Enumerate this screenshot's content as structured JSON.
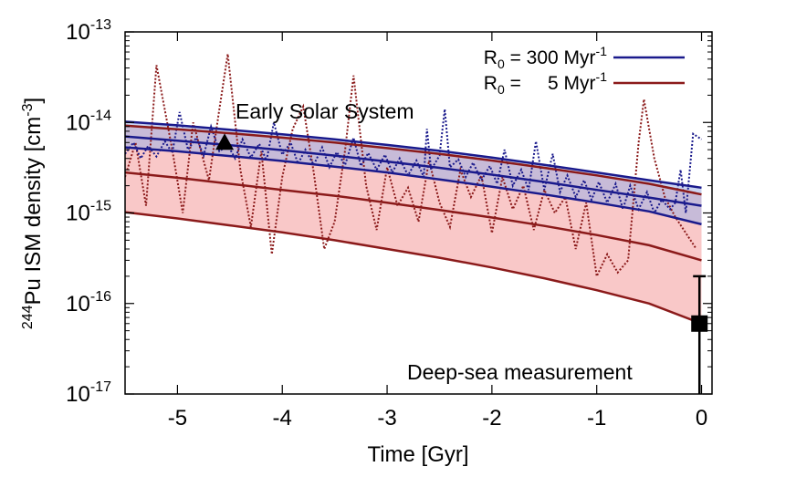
{
  "chart_data": {
    "type": "line",
    "xlabel": "Time [Gyr]",
    "ylabel": {
      "prefix_sup": "244",
      "main": "Pu ISM density [cm",
      "unit_sup": "-3",
      "suffix": "]"
    },
    "xlim": [
      -5.5,
      0.1
    ],
    "ylim": [
      1e-17,
      1e-13
    ],
    "y_scale": "log",
    "grid": false,
    "x_ticks": [
      {
        "value": -5,
        "label": "-5"
      },
      {
        "value": -4,
        "label": "-4"
      },
      {
        "value": -3,
        "label": "-3"
      },
      {
        "value": -2,
        "label": "-2"
      },
      {
        "value": -1,
        "label": "-1"
      },
      {
        "value": 0,
        "label": "0"
      }
    ],
    "y_ticks": [
      {
        "exp": -17,
        "base": "10",
        "sup": "-17"
      },
      {
        "exp": -16,
        "base": "10",
        "sup": "-16"
      },
      {
        "exp": -15,
        "base": "10",
        "sup": "-15"
      },
      {
        "exp": -14,
        "base": "10",
        "sup": "-14"
      },
      {
        "exp": -13,
        "base": "10",
        "sup": "-13"
      }
    ],
    "legend": {
      "placement": "top-right",
      "entries": [
        {
          "label_sym": "R",
          "label_sub": "0",
          "label_rest": " = 300 Myr",
          "label_sup": "-1",
          "color": "#1a1a8c"
        },
        {
          "label_sym": "R",
          "label_sub": "0",
          "label_rest": " =     5 Myr",
          "label_sup": "-1",
          "color": "#8b1a1a"
        }
      ]
    },
    "series": [
      {
        "color": "#1a1a8c",
        "band_color": "#9fb1e6",
        "x": [
          -5.5,
          -5.0,
          -4.5,
          -4.0,
          -3.5,
          -3.0,
          -2.5,
          -2.0,
          -1.5,
          -1.0,
          -0.5,
          0.0
        ],
        "upper": [
          1.02e-14,
          9.3e-15,
          8.3e-15,
          7.4e-15,
          6.5e-15,
          5.65e-15,
          4.85e-15,
          4.1e-15,
          3.4e-15,
          2.8e-15,
          2.3e-15,
          1.9e-15
        ],
        "mid": [
          7e-15,
          6.3e-15,
          5.6e-15,
          4.95e-15,
          4.3e-15,
          3.7e-15,
          3.15e-15,
          2.65e-15,
          2.2e-15,
          1.8e-15,
          1.48e-15,
          1.2e-15
        ],
        "lower": [
          5.3e-15,
          4.8e-15,
          4.25e-15,
          3.75e-15,
          3.25e-15,
          2.8e-15,
          2.35e-15,
          1.95e-15,
          1.6e-15,
          1.3e-15,
          1.04e-15,
          7.5e-16
        ],
        "stochastic": [
          [
            -5.5,
            4.5e-15
          ],
          [
            -5.42,
            6e-15
          ],
          [
            -5.35,
            4e-15
          ],
          [
            -5.28,
            5.5e-15
          ],
          [
            -5.2,
            4.2e-15
          ],
          [
            -5.12,
            6.2e-15
          ],
          [
            -5.05,
            4.6e-15
          ],
          [
            -4.98,
            1.3e-14
          ],
          [
            -4.9,
            5e-15
          ],
          [
            -4.82,
            6.8e-15
          ],
          [
            -4.75,
            4.3e-15
          ],
          [
            -4.68,
            9e-15
          ],
          [
            -4.6,
            4.8e-15
          ],
          [
            -4.52,
            5.6e-15
          ],
          [
            -4.45,
            4e-15
          ],
          [
            -4.38,
            6.5e-15
          ],
          [
            -4.3,
            4.1e-15
          ],
          [
            -4.22,
            5.8e-15
          ],
          [
            -4.15,
            3.8e-15
          ],
          [
            -4.08,
            1e-14
          ],
          [
            -4.0,
            4.4e-15
          ],
          [
            -3.92,
            6e-15
          ],
          [
            -3.85,
            3.5e-15
          ],
          [
            -3.78,
            5e-15
          ],
          [
            -3.7,
            3.4e-15
          ],
          [
            -3.62,
            5.3e-15
          ],
          [
            -3.55,
            3.2e-15
          ],
          [
            -3.48,
            4.7e-15
          ],
          [
            -3.4,
            3.4e-15
          ],
          [
            -3.32,
            6.8e-15
          ],
          [
            -3.25,
            3.3e-15
          ],
          [
            -3.18,
            4.6e-15
          ],
          [
            -3.1,
            3e-15
          ],
          [
            -3.02,
            4.4e-15
          ],
          [
            -2.95,
            2.8e-15
          ],
          [
            -2.88,
            4e-15
          ],
          [
            -2.8,
            2.6e-15
          ],
          [
            -2.72,
            3.8e-15
          ],
          [
            -2.65,
            2.5e-15
          ],
          [
            -2.62,
            8.5e-15
          ],
          [
            -2.58,
            3e-15
          ],
          [
            -2.5,
            4.3e-15
          ],
          [
            -2.45,
            1.4e-14
          ],
          [
            -2.4,
            3.2e-15
          ],
          [
            -2.32,
            3.9e-15
          ],
          [
            -2.25,
            2.5e-15
          ],
          [
            -2.18,
            3.6e-15
          ],
          [
            -2.1,
            2.3e-15
          ],
          [
            -2.02,
            3.3e-15
          ],
          [
            -1.95,
            2.1e-15
          ],
          [
            -1.88,
            5e-15
          ],
          [
            -1.8,
            2e-15
          ],
          [
            -1.72,
            3e-15
          ],
          [
            -1.65,
            1.8e-15
          ],
          [
            -1.58,
            6.2e-15
          ],
          [
            -1.5,
            1.8e-15
          ],
          [
            -1.42,
            4.5e-15
          ],
          [
            -1.35,
            1.7e-15
          ],
          [
            -1.28,
            2.6e-15
          ],
          [
            -1.2,
            1.5e-15
          ],
          [
            -1.12,
            2.3e-15
          ],
          [
            -1.05,
            1.4e-15
          ],
          [
            -0.98,
            2.2e-15
          ],
          [
            -0.9,
            1.3e-15
          ],
          [
            -0.82,
            2.1e-15
          ],
          [
            -0.75,
            1.1e-15
          ],
          [
            -0.68,
            2e-15
          ],
          [
            -0.6,
            1.1e-15
          ],
          [
            -0.52,
            1.7e-15
          ],
          [
            -0.45,
            1e-15
          ],
          [
            -0.38,
            1.4e-15
          ],
          [
            -0.3,
            1.1e-15
          ],
          [
            -0.25,
            1.3e-15
          ],
          [
            -0.2,
            3e-15
          ],
          [
            -0.15,
            1e-15
          ],
          [
            -0.08,
            7.5e-15
          ],
          [
            0.0,
            6.5e-15
          ]
        ]
      },
      {
        "color": "#8b1a1a",
        "band_color": "#f5a3a3",
        "x": [
          -5.5,
          -5.0,
          -4.5,
          -4.0,
          -3.5,
          -3.0,
          -2.5,
          -2.0,
          -1.5,
          -1.0,
          -0.5,
          0.0
        ],
        "upper": [
          9.2e-15,
          8.4e-15,
          7.6e-15,
          6.8e-15,
          6e-15,
          5.2e-15,
          4.5e-15,
          3.8e-15,
          3.15e-15,
          2.6e-15,
          2.1e-15,
          1.6e-15
        ],
        "mid": [
          2.8e-15,
          2.45e-15,
          2.1e-15,
          1.8e-15,
          1.55e-15,
          1.3e-15,
          1.08e-15,
          8.9e-16,
          7.2e-16,
          5.7e-16,
          4.4e-16,
          3e-16
        ],
        "lower": [
          1.02e-15,
          8.7e-16,
          7.3e-16,
          6.1e-16,
          5e-16,
          4e-16,
          3.2e-16,
          2.5e-16,
          1.9e-16,
          1.4e-16,
          1e-16,
          6e-17
        ],
        "stochastic": [
          [
            -5.5,
            2.5e-15
          ],
          [
            -5.4,
            6e-15
          ],
          [
            -5.3,
            1.2e-15
          ],
          [
            -5.2,
            4.3e-14
          ],
          [
            -5.05,
            5e-15
          ],
          [
            -4.95,
            1e-15
          ],
          [
            -4.85,
            1e-14
          ],
          [
            -4.7,
            2.3e-15
          ],
          [
            -4.6,
            1.4e-14
          ],
          [
            -4.52,
            5.7e-14
          ],
          [
            -4.4,
            3e-15
          ],
          [
            -4.3,
            7e-16
          ],
          [
            -4.2,
            4.8e-15
          ],
          [
            -4.1,
            3.5e-16
          ],
          [
            -4.0,
            2.5e-15
          ],
          [
            -3.9,
            8.5e-15
          ],
          [
            -3.8,
            1.5e-14
          ],
          [
            -3.7,
            2.8e-15
          ],
          [
            -3.6,
            4e-16
          ],
          [
            -3.5,
            8e-16
          ],
          [
            -3.4,
            5e-15
          ],
          [
            -3.32,
            3.3e-14
          ],
          [
            -3.2,
            2e-15
          ],
          [
            -3.1,
            6.5e-16
          ],
          [
            -3.0,
            3.2e-15
          ],
          [
            -2.9,
            1.2e-15
          ],
          [
            -2.8,
            1.9e-15
          ],
          [
            -2.7,
            8e-16
          ],
          [
            -2.6,
            3.8e-15
          ],
          [
            -2.5,
            1.3e-15
          ],
          [
            -2.4,
            7e-16
          ],
          [
            -2.3,
            3e-15
          ],
          [
            -2.2,
            1.5e-15
          ],
          [
            -2.1,
            2.6e-15
          ],
          [
            -2.0,
            6e-16
          ],
          [
            -1.9,
            2.5e-15
          ],
          [
            -1.8,
            1.1e-15
          ],
          [
            -1.7,
            2e-15
          ],
          [
            -1.6,
            6.5e-16
          ],
          [
            -1.5,
            1.8e-15
          ],
          [
            -1.4,
            1e-15
          ],
          [
            -1.3,
            1.5e-15
          ],
          [
            -1.2,
            4e-16
          ],
          [
            -1.1,
            1.3e-15
          ],
          [
            -1.0,
            2e-16
          ],
          [
            -0.9,
            3.5e-16
          ],
          [
            -0.8,
            2.2e-16
          ],
          [
            -0.7,
            3e-16
          ],
          [
            -0.6,
            6e-15
          ],
          [
            -0.55,
            1.8e-14
          ],
          [
            -0.45,
            4e-15
          ],
          [
            -0.35,
            1.5e-15
          ],
          [
            -0.25,
            9e-16
          ],
          [
            -0.15,
            6e-16
          ],
          [
            -0.05,
            4e-16
          ]
        ]
      }
    ],
    "points": [
      {
        "x": -4.55,
        "y": 6e-15,
        "marker": "triangle"
      },
      {
        "x": -0.02,
        "y": 6e-17,
        "marker": "square",
        "err_low": 1e-17,
        "err_high": 2e-16
      }
    ],
    "annotations": [
      {
        "text": "Early Solar System",
        "x": -4.6,
        "y": 1e-14
      },
      {
        "text": "Deep-sea measurement",
        "x": -2.85,
        "y": 2e-17
      }
    ]
  }
}
